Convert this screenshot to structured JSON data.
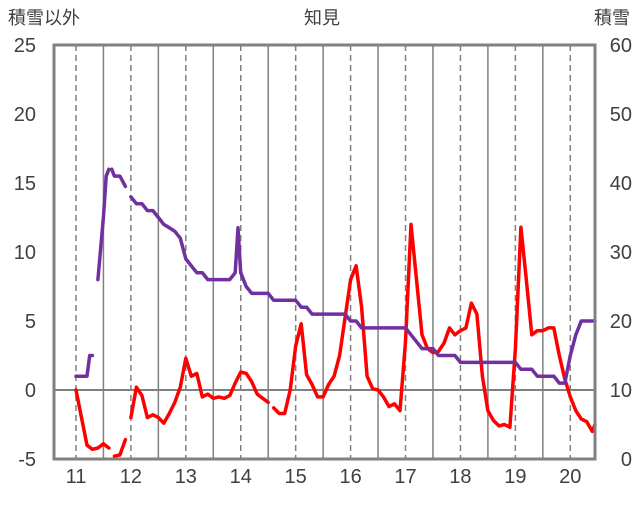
{
  "chart_data": {
    "type": "line",
    "title": "知見",
    "ylabel_left": "積雪以外",
    "ylabel_right": "積雪",
    "xlim": [
      10.6,
      20.45
    ],
    "ylim_left": [
      -5,
      25
    ],
    "ylim_right": [
      0,
      60
    ],
    "left_ticks": [
      -5,
      0,
      5,
      10,
      15,
      20,
      25
    ],
    "right_ticks": [
      0,
      10,
      20,
      30,
      40,
      50,
      60
    ],
    "x_ticks": [
      11,
      12,
      13,
      14,
      15,
      16,
      17,
      18,
      19,
      20
    ],
    "grid": "vertical dashed at day midpoints, solid at day boundaries",
    "series": [
      {
        "color": "#ff0000",
        "axis": "left",
        "segments": [
          [
            [
              11.0,
              0.0
            ],
            [
              11.1,
              -2.0
            ],
            [
              11.2,
              -4.0
            ],
            [
              11.3,
              -4.3
            ],
            [
              11.4,
              -4.2
            ],
            [
              11.5,
              -3.9
            ],
            [
              11.6,
              -4.2
            ]
          ],
          [
            [
              11.7,
              -4.8
            ],
            [
              11.8,
              -4.7
            ],
            [
              11.9,
              -3.6
            ]
          ],
          [
            [
              12.0,
              -2.0
            ],
            [
              12.1,
              0.2
            ],
            [
              12.2,
              -0.4
            ],
            [
              12.3,
              -2.0
            ],
            [
              12.4,
              -1.8
            ],
            [
              12.5,
              -2.0
            ],
            [
              12.6,
              -2.4
            ],
            [
              12.7,
              -1.7
            ],
            [
              12.8,
              -0.9
            ],
            [
              12.9,
              0.2
            ],
            [
              13.0,
              2.3
            ],
            [
              13.1,
              1.0
            ],
            [
              13.2,
              1.2
            ],
            [
              13.3,
              -0.5
            ],
            [
              13.4,
              -0.3
            ],
            [
              13.5,
              -0.6
            ],
            [
              13.6,
              -0.5
            ],
            [
              13.7,
              -0.6
            ],
            [
              13.8,
              -0.4
            ],
            [
              13.9,
              0.5
            ],
            [
              14.0,
              1.3
            ],
            [
              14.1,
              1.2
            ],
            [
              14.2,
              0.6
            ],
            [
              14.3,
              -0.3
            ],
            [
              14.4,
              -0.6
            ],
            [
              14.5,
              -0.9
            ]
          ],
          [
            [
              14.6,
              -1.3
            ],
            [
              14.7,
              -1.7
            ],
            [
              14.8,
              -1.7
            ],
            [
              14.9,
              0.0
            ],
            [
              15.0,
              3.2
            ],
            [
              15.1,
              4.8
            ],
            [
              15.2,
              1.1
            ],
            [
              15.3,
              0.4
            ],
            [
              15.4,
              -0.5
            ],
            [
              15.5,
              -0.5
            ],
            [
              15.6,
              0.4
            ],
            [
              15.7,
              1.0
            ],
            [
              15.8,
              2.5
            ],
            [
              16.0,
              8.0
            ],
            [
              16.1,
              9.0
            ],
            [
              16.2,
              6.0
            ],
            [
              16.3,
              1.0
            ],
            [
              16.4,
              0.1
            ],
            [
              16.5,
              0.0
            ],
            [
              16.6,
              -0.5
            ],
            [
              16.7,
              -1.2
            ],
            [
              16.8,
              -1.0
            ],
            [
              16.9,
              -1.5
            ],
            [
              17.0,
              3.5
            ],
            [
              17.1,
              12.0
            ],
            [
              17.2,
              8.0
            ],
            [
              17.3,
              4.0
            ],
            [
              17.4,
              3.0
            ],
            [
              17.5,
              2.7
            ],
            [
              17.6,
              2.8
            ],
            [
              17.7,
              3.4
            ],
            [
              17.8,
              4.5
            ],
            [
              17.9,
              4.0
            ],
            [
              18.0,
              4.3
            ],
            [
              18.1,
              4.5
            ],
            [
              18.2,
              6.3
            ],
            [
              18.3,
              5.5
            ],
            [
              18.4,
              1.0
            ],
            [
              18.5,
              -1.5
            ],
            [
              18.6,
              -2.2
            ],
            [
              18.7,
              -2.6
            ],
            [
              18.8,
              -2.5
            ],
            [
              18.9,
              -2.7
            ],
            [
              19.0,
              3.0
            ],
            [
              19.1,
              11.8
            ],
            [
              19.2,
              8.0
            ],
            [
              19.3,
              4.0
            ],
            [
              19.4,
              4.3
            ],
            [
              19.5,
              4.3
            ],
            [
              19.6,
              4.5
            ],
            [
              19.7,
              4.5
            ],
            [
              19.8,
              2.5
            ],
            [
              19.9,
              0.8
            ],
            [
              20.0,
              -0.5
            ],
            [
              20.1,
              -1.5
            ],
            [
              20.2,
              -2.1
            ],
            [
              20.3,
              -2.3
            ],
            [
              20.4,
              -3.0
            ],
            [
              20.45,
              -2.5
            ]
          ]
        ]
      },
      {
        "color": "#7030a0",
        "axis": "right",
        "segments": [
          [
            [
              11.0,
              12
            ],
            [
              11.1,
              12
            ],
            [
              11.2,
              12
            ],
            [
              11.25,
              15
            ],
            [
              11.3,
              15
            ]
          ],
          [
            [
              11.4,
              26
            ],
            [
              11.5,
              35
            ],
            [
              11.55,
              41
            ],
            [
              11.6,
              42
            ]
          ],
          [
            [
              11.65,
              42
            ],
            [
              11.7,
              41
            ],
            [
              11.8,
              41
            ],
            [
              11.9,
              39.5
            ]
          ],
          [
            [
              12.0,
              38
            ],
            [
              12.1,
              37
            ],
            [
              12.2,
              37
            ],
            [
              12.3,
              36
            ],
            [
              12.4,
              36
            ],
            [
              12.5,
              35
            ],
            [
              12.6,
              34
            ],
            [
              12.7,
              33.5
            ],
            [
              12.8,
              33
            ],
            [
              12.9,
              32
            ],
            [
              13.0,
              29
            ],
            [
              13.1,
              28
            ],
            [
              13.2,
              27
            ],
            [
              13.3,
              27
            ],
            [
              13.4,
              26
            ],
            [
              13.5,
              26
            ],
            [
              13.6,
              26
            ],
            [
              13.7,
              26
            ],
            [
              13.8,
              26
            ],
            [
              13.9,
              27
            ],
            [
              13.95,
              33.5
            ],
            [
              14.0,
              27
            ],
            [
              14.1,
              25
            ],
            [
              14.2,
              24
            ],
            [
              14.3,
              24
            ],
            [
              14.4,
              24
            ],
            [
              14.5,
              24
            ],
            [
              14.6,
              23
            ],
            [
              14.7,
              23
            ],
            [
              14.8,
              23
            ],
            [
              14.9,
              23
            ],
            [
              15.0,
              23
            ],
            [
              15.1,
              22
            ],
            [
              15.2,
              22
            ],
            [
              15.3,
              21
            ],
            [
              15.4,
              21
            ],
            [
              15.5,
              21
            ],
            [
              15.6,
              21
            ],
            [
              15.7,
              21
            ],
            [
              15.8,
              21
            ],
            [
              15.9,
              21
            ],
            [
              16.0,
              20
            ],
            [
              16.1,
              20
            ],
            [
              16.2,
              19
            ],
            [
              16.3,
              19
            ],
            [
              16.4,
              19
            ],
            [
              16.5,
              19
            ],
            [
              16.6,
              19
            ],
            [
              16.7,
              19
            ],
            [
              16.8,
              19
            ],
            [
              16.9,
              19
            ],
            [
              17.0,
              19
            ],
            [
              17.1,
              18
            ],
            [
              17.2,
              17
            ],
            [
              17.3,
              16
            ],
            [
              17.4,
              16
            ],
            [
              17.5,
              16
            ],
            [
              17.6,
              15
            ],
            [
              17.7,
              15
            ],
            [
              17.8,
              15
            ],
            [
              17.9,
              15
            ],
            [
              18.0,
              14
            ],
            [
              18.1,
              14
            ],
            [
              18.2,
              14
            ],
            [
              18.3,
              14
            ],
            [
              18.4,
              14
            ],
            [
              18.5,
              14
            ],
            [
              18.6,
              14
            ],
            [
              18.7,
              14
            ],
            [
              18.8,
              14
            ],
            [
              18.9,
              14
            ],
            [
              19.0,
              14
            ],
            [
              19.1,
              13
            ],
            [
              19.2,
              13
            ],
            [
              19.3,
              13
            ],
            [
              19.4,
              12
            ],
            [
              19.5,
              12
            ],
            [
              19.6,
              12
            ],
            [
              19.7,
              12
            ],
            [
              19.8,
              11
            ],
            [
              19.9,
              11
            ],
            [
              20.0,
              15
            ],
            [
              20.1,
              18
            ],
            [
              20.2,
              20
            ],
            [
              20.3,
              20
            ],
            [
              20.4,
              20
            ],
            [
              20.45,
              20
            ]
          ]
        ]
      }
    ]
  }
}
